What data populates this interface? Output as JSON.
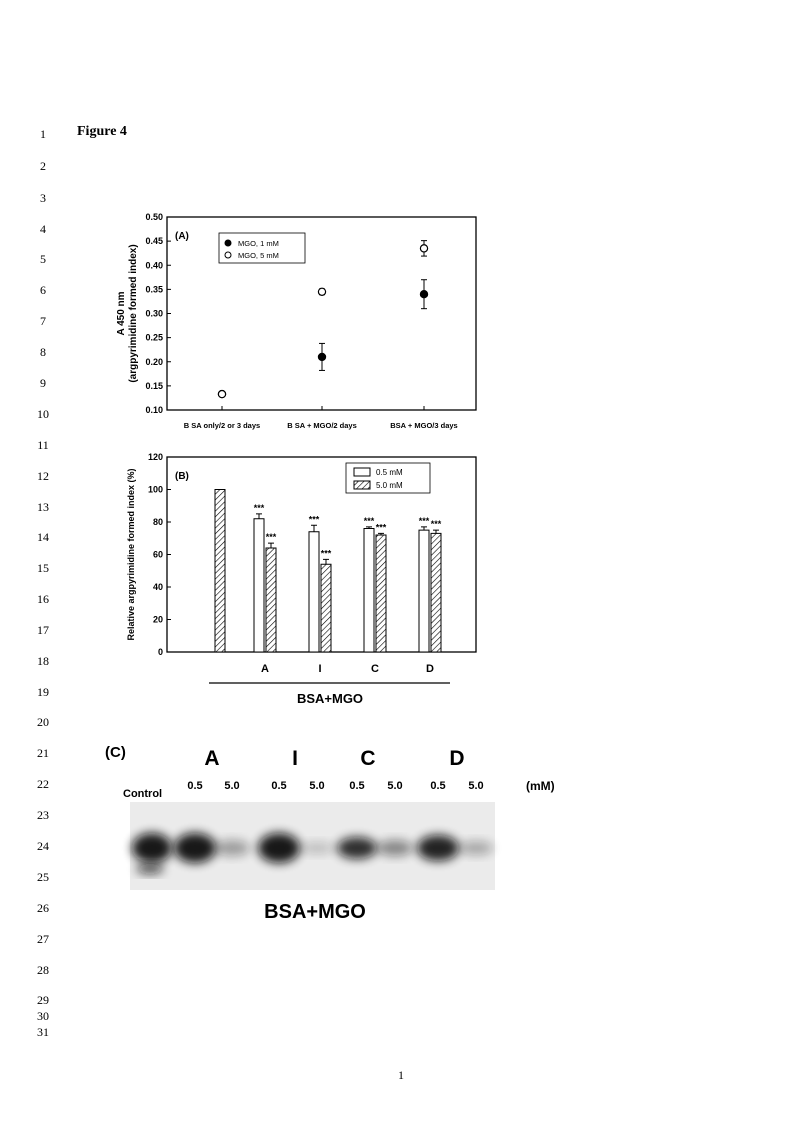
{
  "figure_title": "Figure 4",
  "page_number": "1",
  "line_numbers": [
    "1",
    "2",
    "3",
    "4",
    "5",
    "6",
    "7",
    "8",
    "9",
    "10",
    "11",
    "12",
    "13",
    "14",
    "15",
    "16",
    "17",
    "18",
    "19",
    "20",
    "21",
    "22",
    "23",
    "24",
    "25",
    "26",
    "27",
    "28",
    "29",
    "30",
    "31"
  ],
  "chart_data": [
    {
      "type": "scatter",
      "panel_label": "(A)",
      "ylabel": "A 450 nm",
      "ylabel2": "(argpyrimidine formed index)",
      "ylim": [
        0.1,
        0.5
      ],
      "yticks": [
        "0.10",
        "0.15",
        "0.20",
        "0.25",
        "0.30",
        "0.35",
        "0.40",
        "0.45",
        "0.50"
      ],
      "categories": [
        "B SA only/2 or 3 days",
        "B SA + MGO/2 days",
        "BSA + MGO/3 days"
      ],
      "legend_position": "top-left",
      "series": [
        {
          "name": "MGO, 1 mM",
          "marker": "filled-circle",
          "values": [
            0.133,
            0.21,
            0.34
          ],
          "errors": [
            0.004,
            0.028,
            0.03
          ]
        },
        {
          "name": "MGO, 5 mM",
          "marker": "open-circle",
          "values": [
            0.133,
            0.345,
            0.435
          ],
          "errors": [
            0.004,
            0.006,
            0.016
          ]
        }
      ]
    },
    {
      "type": "bar",
      "panel_label": "(B)",
      "ylabel": "Relative argpyrimidine formed index (%)",
      "ylim": [
        0,
        120
      ],
      "yticks": [
        "0",
        "20",
        "40",
        "60",
        "80",
        "100",
        "120"
      ],
      "categories": [
        "",
        "A",
        "I",
        "C",
        "D"
      ],
      "group_label": "BSA+MGO",
      "legend_position": "top-right",
      "significance": "***",
      "series": [
        {
          "name": "0.5 mM",
          "pattern": "open",
          "values": [
            null,
            82,
            74,
            76,
            75
          ],
          "errors": [
            null,
            3,
            4,
            1,
            2
          ]
        },
        {
          "name": "5.0 mM",
          "pattern": "hatched",
          "values": [
            100,
            64,
            54,
            72,
            73
          ],
          "errors": [
            0.5,
            3,
            3,
            1,
            2
          ]
        }
      ]
    }
  ],
  "gel": {
    "panel_label": "(C)",
    "groups": [
      "A",
      "I",
      "C",
      "D"
    ],
    "control_label": "Control",
    "concentrations": [
      "0.5",
      "5.0",
      "0.5",
      "5.0",
      "0.5",
      "5.0",
      "0.5",
      "5.0"
    ],
    "unit": "(mM)",
    "caption": "BSA+MGO"
  }
}
